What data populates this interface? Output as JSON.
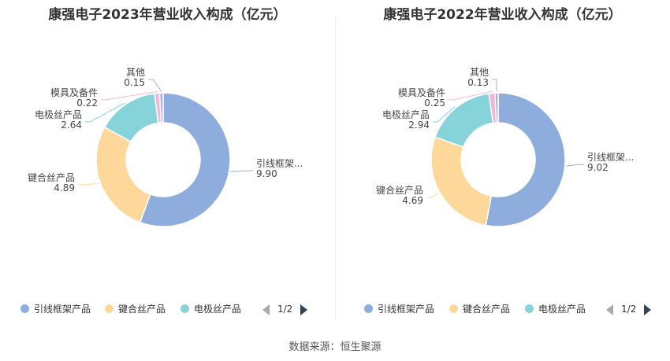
{
  "chart_data": [
    {
      "type": "pie",
      "title": "康强电子2023年营业收入构成（亿元）",
      "slices": [
        {
          "label": "引线框架...",
          "value": 9.9,
          "value_text": "9.90",
          "legend": "引线框架产品",
          "color": "#8eaddc"
        },
        {
          "label": "键合丝产品",
          "value": 4.89,
          "value_text": "4.89",
          "legend": "键合丝产品",
          "color": "#fdd89a"
        },
        {
          "label": "电极丝产品",
          "value": 2.64,
          "value_text": "2.64",
          "legend": "电极丝产品",
          "color": "#86d4d9"
        },
        {
          "label": "模具及备件",
          "value": 0.22,
          "value_text": "0.22",
          "color": "#f0b8d8"
        },
        {
          "label": "其他",
          "value": 0.15,
          "value_text": "0.15",
          "color": "#b8a8e0"
        }
      ],
      "pager": "1/2"
    },
    {
      "type": "pie",
      "title": "康强电子2022年营业收入构成（亿元）",
      "slices": [
        {
          "label": "引线框架...",
          "value": 9.02,
          "value_text": "9.02",
          "legend": "引线框架产品",
          "color": "#8eaddc"
        },
        {
          "label": "键合丝产品",
          "value": 4.69,
          "value_text": "4.69",
          "legend": "键合丝产品",
          "color": "#fdd89a"
        },
        {
          "label": "电极丝产品",
          "value": 2.94,
          "value_text": "2.94",
          "legend": "电极丝产品",
          "color": "#86d4d9"
        },
        {
          "label": "模具及备件",
          "value": 0.25,
          "value_text": "0.25",
          "color": "#f0b8d8"
        },
        {
          "label": "其他",
          "value": 0.13,
          "value_text": "0.13",
          "color": "#b8a8e0"
        }
      ],
      "pager": "1/2"
    }
  ],
  "source": "数据来源：恒生聚源"
}
